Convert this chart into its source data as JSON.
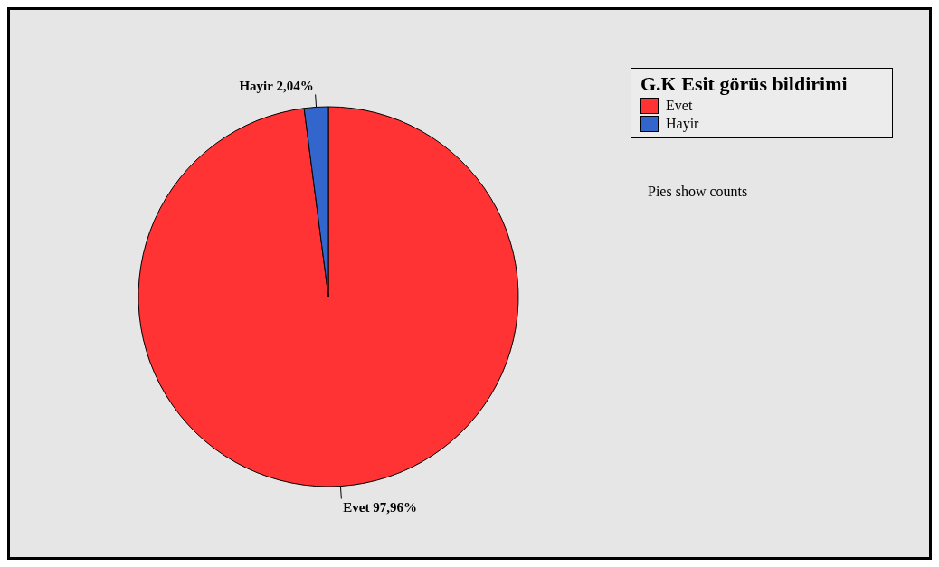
{
  "chart_data": {
    "type": "pie",
    "legend_title": "G.K Esit görüs bildirimi",
    "legend": "top right",
    "categories": [
      "Evet",
      "Hayir"
    ],
    "values": [
      97.96,
      2.04
    ],
    "value_labels": [
      "97,96%",
      "2,04%"
    ],
    "colors": [
      "#ff3333",
      "#3366cc"
    ],
    "annotations": [
      "Pies show counts"
    ]
  }
}
